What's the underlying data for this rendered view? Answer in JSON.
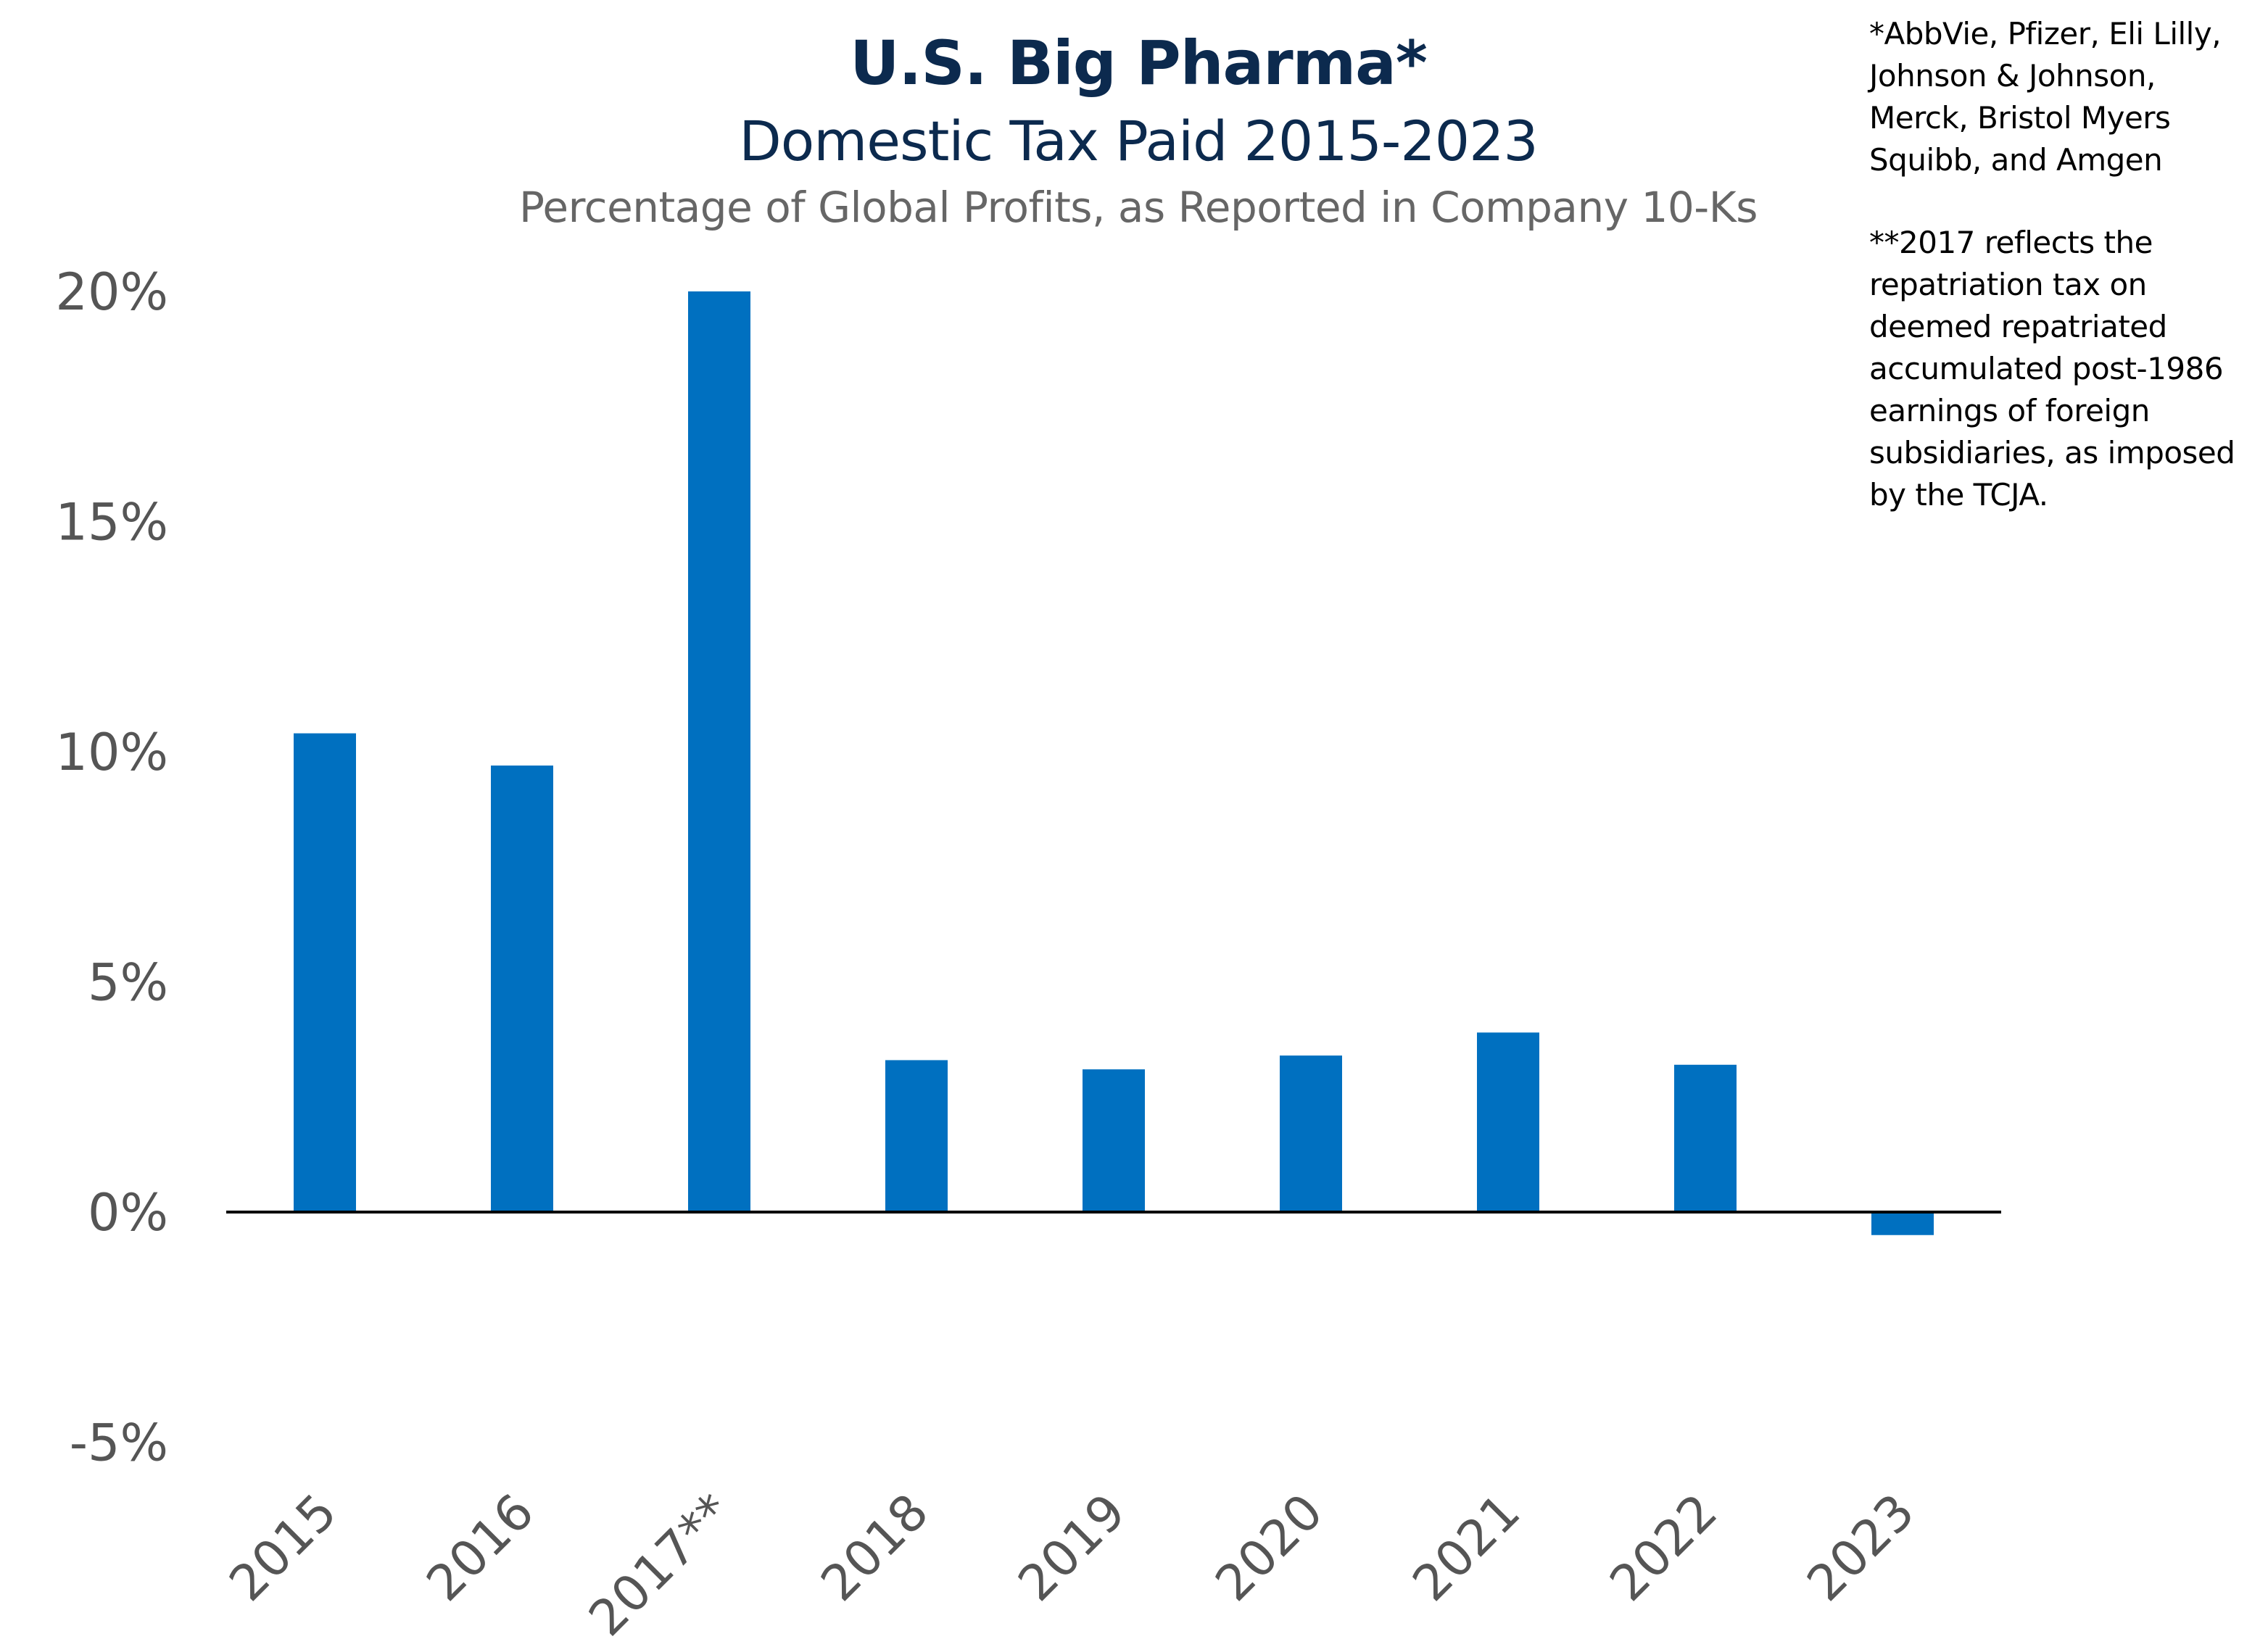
{
  "chart_data": {
    "type": "bar",
    "title": "U.S. Big Pharma*",
    "subtitle": "Domestic Tax Paid 2015-2023",
    "description": "Percentage of Global Profits, as Reported in Company 10-Ks",
    "categories": [
      "2015",
      "2016",
      "2017**",
      "2018",
      "2019",
      "2020",
      "2021",
      "2022",
      "2023"
    ],
    "values": [
      10.4,
      9.7,
      20.0,
      3.3,
      3.1,
      3.4,
      3.9,
      3.2,
      -0.5
    ],
    "unit": "%",
    "ylim": [
      -5,
      20
    ],
    "yticks": [
      20,
      15,
      10,
      5,
      0,
      -5
    ],
    "ytick_labels": [
      "20%",
      "15%",
      "10%",
      "5%",
      "0%",
      "-5%"
    ],
    "xlabel": "",
    "ylabel": "",
    "grid": false,
    "bar_color": "#0070c0",
    "notes": [
      "*AbbVie, Pfizer, Eli Lilly,\nJohnson & Johnson,\nMerck, Bristol Myers\nSquibb, and Amgen",
      "**2017 reflects the\nrepatriation tax on\ndeemed repatriated\naccumulated post-1986\nearnings of foreign\nsubsidiaries, as imposed\nby the TCJA."
    ]
  }
}
